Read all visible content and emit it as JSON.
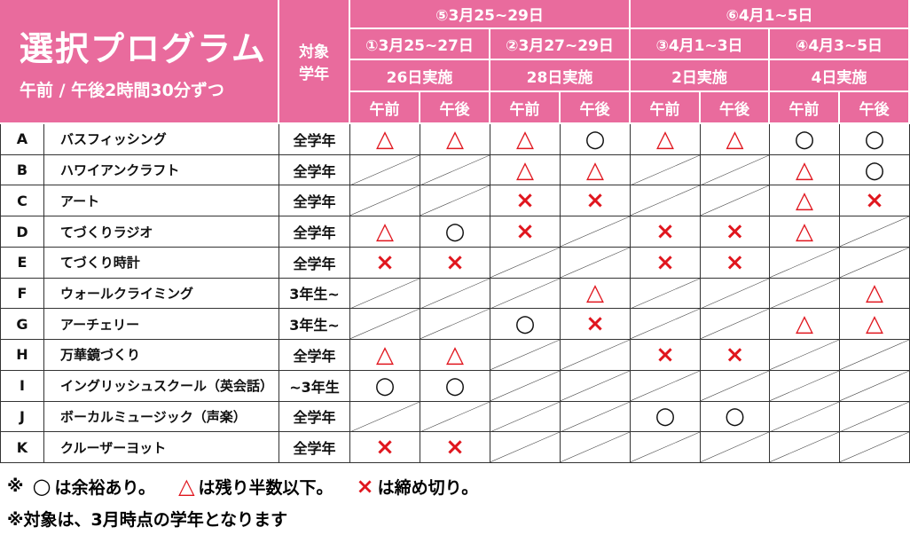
{
  "header": {
    "title": "選択プログラム",
    "subtitle": "午前 / 午後2時間30分ずつ",
    "target": [
      "対象",
      "学年"
    ]
  },
  "periods": [
    {
      "label": "⑤3月25~29日",
      "sessions": [
        {
          "label": "①3月25~27日",
          "days": "26日実施",
          "slots": [
            "午前",
            "午後"
          ]
        },
        {
          "label": "②3月27~29日",
          "days": "28日実施",
          "slots": [
            "午前",
            "午後"
          ]
        }
      ]
    },
    {
      "label": "⑥4月1~5日",
      "sessions": [
        {
          "label": "③4月1~3日",
          "days": "2日実施",
          "slots": [
            "午前",
            "午後"
          ]
        },
        {
          "label": "④4月3~5日",
          "days": "4日実施",
          "slots": [
            "午前",
            "午後"
          ]
        }
      ]
    }
  ],
  "rows": [
    {
      "id": "A",
      "name": "バスフィッシング",
      "target": "全学年",
      "status": [
        "△",
        "△",
        "△",
        "○",
        "△",
        "△",
        "○",
        "○"
      ]
    },
    {
      "id": "B",
      "name": "ハワイアンクラフト",
      "target": "全学年",
      "status": [
        null,
        null,
        "△",
        "△",
        null,
        null,
        "△",
        "○"
      ]
    },
    {
      "id": "C",
      "name": "アート",
      "target": "全学年",
      "status": [
        null,
        null,
        "×",
        "×",
        null,
        null,
        "△",
        "×"
      ]
    },
    {
      "id": "D",
      "name": "てづくりラジオ",
      "target": "全学年",
      "status": [
        "△",
        "○",
        "×",
        null,
        "×",
        "×",
        "△",
        null
      ]
    },
    {
      "id": "E",
      "name": "てづくり時計",
      "target": "全学年",
      "status": [
        "×",
        "×",
        null,
        null,
        "×",
        "×",
        null,
        null
      ]
    },
    {
      "id": "F",
      "name": "ウォールクライミング",
      "target": "3年生~",
      "status": [
        null,
        null,
        null,
        "△",
        null,
        null,
        null,
        "△"
      ]
    },
    {
      "id": "G",
      "name": "アーチェリー",
      "target": "3年生~",
      "status": [
        null,
        null,
        "○",
        "×",
        null,
        null,
        "△",
        "△"
      ]
    },
    {
      "id": "H",
      "name": "万華鏡づくり",
      "target": "全学年",
      "status": [
        "△",
        "△",
        null,
        null,
        "×",
        "×",
        null,
        null
      ]
    },
    {
      "id": "I",
      "name": "イングリッシュスクール（英会話）",
      "target": "~3年生",
      "status": [
        "○",
        "○",
        null,
        null,
        null,
        null,
        null,
        null
      ]
    },
    {
      "id": "J",
      "name": "ボーカルミュージック（声楽）",
      "target": "全学年",
      "status": [
        null,
        null,
        null,
        null,
        "○",
        "○",
        null,
        null
      ]
    },
    {
      "id": "K",
      "name": "クルーザーヨット",
      "target": "全学年",
      "status": [
        "×",
        "×",
        null,
        null,
        null,
        null,
        null,
        null
      ]
    }
  ],
  "legend": {
    "prefix": "※",
    "items": [
      {
        "symbol": "○",
        "text": "は余裕あり。"
      },
      {
        "symbol": "△",
        "text": "は残り半数以下。"
      },
      {
        "symbol": "×",
        "text": "は締め切り。"
      }
    ]
  },
  "note": "※対象は、3月時点の学年となります"
}
